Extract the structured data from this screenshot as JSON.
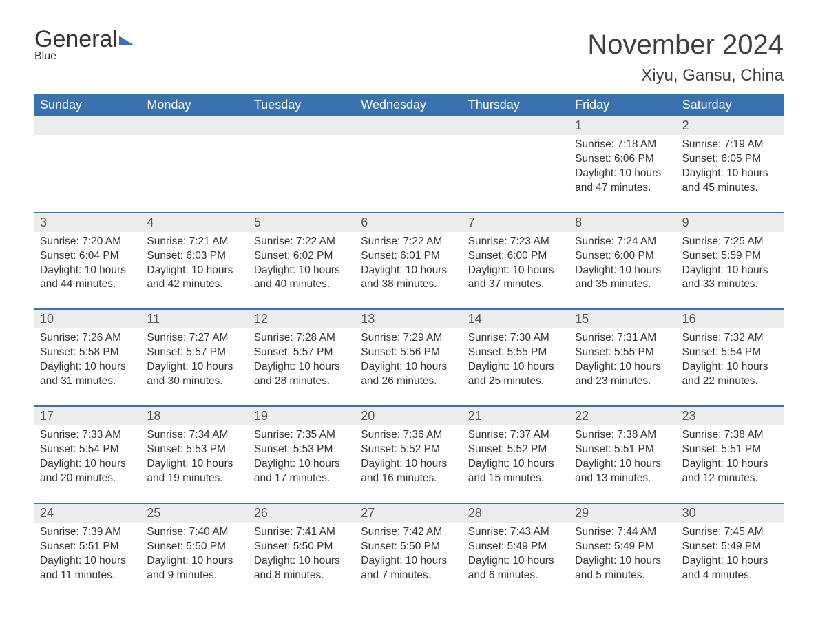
{
  "brand": {
    "text1": "General",
    "text2": "Blue",
    "accent_color": "#3a72af"
  },
  "title": "November 2024",
  "subtitle": "Xiyu, Gansu, China",
  "colors": {
    "header_bg": "#3a72af",
    "header_text": "#ffffff",
    "daynum_bg": "#ececec",
    "body_text": "#333333",
    "page_bg": "#ffffff",
    "row_border": "#3a72af"
  },
  "typography": {
    "title_fontsize": 40,
    "subtitle_fontsize": 24,
    "header_fontsize": 18,
    "daynum_fontsize": 18,
    "body_fontsize": 15.5,
    "font_family": "Arial"
  },
  "days_of_week": [
    "Sunday",
    "Monday",
    "Tuesday",
    "Wednesday",
    "Thursday",
    "Friday",
    "Saturday"
  ],
  "weeks": [
    [
      null,
      null,
      null,
      null,
      null,
      {
        "n": "1",
        "sunrise": "Sunrise: 7:18 AM",
        "sunset": "Sunset: 6:06 PM",
        "day": "Daylight: 10 hours and 47 minutes."
      },
      {
        "n": "2",
        "sunrise": "Sunrise: 7:19 AM",
        "sunset": "Sunset: 6:05 PM",
        "day": "Daylight: 10 hours and 45 minutes."
      }
    ],
    [
      {
        "n": "3",
        "sunrise": "Sunrise: 7:20 AM",
        "sunset": "Sunset: 6:04 PM",
        "day": "Daylight: 10 hours and 44 minutes."
      },
      {
        "n": "4",
        "sunrise": "Sunrise: 7:21 AM",
        "sunset": "Sunset: 6:03 PM",
        "day": "Daylight: 10 hours and 42 minutes."
      },
      {
        "n": "5",
        "sunrise": "Sunrise: 7:22 AM",
        "sunset": "Sunset: 6:02 PM",
        "day": "Daylight: 10 hours and 40 minutes."
      },
      {
        "n": "6",
        "sunrise": "Sunrise: 7:22 AM",
        "sunset": "Sunset: 6:01 PM",
        "day": "Daylight: 10 hours and 38 minutes."
      },
      {
        "n": "7",
        "sunrise": "Sunrise: 7:23 AM",
        "sunset": "Sunset: 6:00 PM",
        "day": "Daylight: 10 hours and 37 minutes."
      },
      {
        "n": "8",
        "sunrise": "Sunrise: 7:24 AM",
        "sunset": "Sunset: 6:00 PM",
        "day": "Daylight: 10 hours and 35 minutes."
      },
      {
        "n": "9",
        "sunrise": "Sunrise: 7:25 AM",
        "sunset": "Sunset: 5:59 PM",
        "day": "Daylight: 10 hours and 33 minutes."
      }
    ],
    [
      {
        "n": "10",
        "sunrise": "Sunrise: 7:26 AM",
        "sunset": "Sunset: 5:58 PM",
        "day": "Daylight: 10 hours and 31 minutes."
      },
      {
        "n": "11",
        "sunrise": "Sunrise: 7:27 AM",
        "sunset": "Sunset: 5:57 PM",
        "day": "Daylight: 10 hours and 30 minutes."
      },
      {
        "n": "12",
        "sunrise": "Sunrise: 7:28 AM",
        "sunset": "Sunset: 5:57 PM",
        "day": "Daylight: 10 hours and 28 minutes."
      },
      {
        "n": "13",
        "sunrise": "Sunrise: 7:29 AM",
        "sunset": "Sunset: 5:56 PM",
        "day": "Daylight: 10 hours and 26 minutes."
      },
      {
        "n": "14",
        "sunrise": "Sunrise: 7:30 AM",
        "sunset": "Sunset: 5:55 PM",
        "day": "Daylight: 10 hours and 25 minutes."
      },
      {
        "n": "15",
        "sunrise": "Sunrise: 7:31 AM",
        "sunset": "Sunset: 5:55 PM",
        "day": "Daylight: 10 hours and 23 minutes."
      },
      {
        "n": "16",
        "sunrise": "Sunrise: 7:32 AM",
        "sunset": "Sunset: 5:54 PM",
        "day": "Daylight: 10 hours and 22 minutes."
      }
    ],
    [
      {
        "n": "17",
        "sunrise": "Sunrise: 7:33 AM",
        "sunset": "Sunset: 5:54 PM",
        "day": "Daylight: 10 hours and 20 minutes."
      },
      {
        "n": "18",
        "sunrise": "Sunrise: 7:34 AM",
        "sunset": "Sunset: 5:53 PM",
        "day": "Daylight: 10 hours and 19 minutes."
      },
      {
        "n": "19",
        "sunrise": "Sunrise: 7:35 AM",
        "sunset": "Sunset: 5:53 PM",
        "day": "Daylight: 10 hours and 17 minutes."
      },
      {
        "n": "20",
        "sunrise": "Sunrise: 7:36 AM",
        "sunset": "Sunset: 5:52 PM",
        "day": "Daylight: 10 hours and 16 minutes."
      },
      {
        "n": "21",
        "sunrise": "Sunrise: 7:37 AM",
        "sunset": "Sunset: 5:52 PM",
        "day": "Daylight: 10 hours and 15 minutes."
      },
      {
        "n": "22",
        "sunrise": "Sunrise: 7:38 AM",
        "sunset": "Sunset: 5:51 PM",
        "day": "Daylight: 10 hours and 13 minutes."
      },
      {
        "n": "23",
        "sunrise": "Sunrise: 7:38 AM",
        "sunset": "Sunset: 5:51 PM",
        "day": "Daylight: 10 hours and 12 minutes."
      }
    ],
    [
      {
        "n": "24",
        "sunrise": "Sunrise: 7:39 AM",
        "sunset": "Sunset: 5:51 PM",
        "day": "Daylight: 10 hours and 11 minutes."
      },
      {
        "n": "25",
        "sunrise": "Sunrise: 7:40 AM",
        "sunset": "Sunset: 5:50 PM",
        "day": "Daylight: 10 hours and 9 minutes."
      },
      {
        "n": "26",
        "sunrise": "Sunrise: 7:41 AM",
        "sunset": "Sunset: 5:50 PM",
        "day": "Daylight: 10 hours and 8 minutes."
      },
      {
        "n": "27",
        "sunrise": "Sunrise: 7:42 AM",
        "sunset": "Sunset: 5:50 PM",
        "day": "Daylight: 10 hours and 7 minutes."
      },
      {
        "n": "28",
        "sunrise": "Sunrise: 7:43 AM",
        "sunset": "Sunset: 5:49 PM",
        "day": "Daylight: 10 hours and 6 minutes."
      },
      {
        "n": "29",
        "sunrise": "Sunrise: 7:44 AM",
        "sunset": "Sunset: 5:49 PM",
        "day": "Daylight: 10 hours and 5 minutes."
      },
      {
        "n": "30",
        "sunrise": "Sunrise: 7:45 AM",
        "sunset": "Sunset: 5:49 PM",
        "day": "Daylight: 10 hours and 4 minutes."
      }
    ]
  ]
}
